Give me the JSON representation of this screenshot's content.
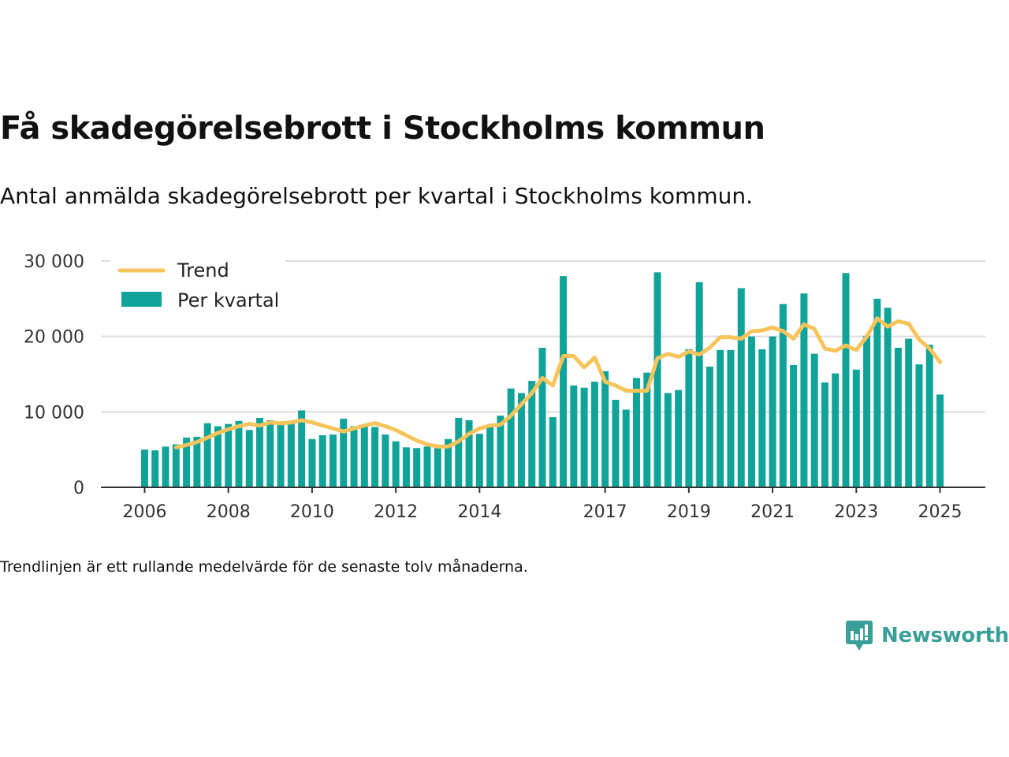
{
  "title": "Få skadegörelsebrott i Stockholms kommun",
  "subtitle": "Antal anmälda skadegörelsebrott per kvartal i Stockholms kommun.",
  "footnote": "Trendlinjen är ett rullande medelvärde för de senaste tolv månaderna.",
  "brand": {
    "name": "Newsworthy",
    "icon": "newsworthy-logo-icon"
  },
  "colors": {
    "bar": "#0fa399",
    "trend": "#f7c35b",
    "grid": "#dddddd",
    "axis": "#333333",
    "brand": "#3a9f98"
  },
  "chart_data": {
    "type": "bar",
    "title": "",
    "xlabel": "",
    "ylabel": "",
    "ylim": [
      0,
      30000
    ],
    "yticks": [
      0,
      10000,
      20000,
      30000
    ],
    "ytick_labels": [
      "0",
      "10 000",
      "20 000",
      "30 000"
    ],
    "xticks": [
      2006,
      2008,
      2010,
      2012,
      2014,
      2017,
      2019,
      2021,
      2023,
      2025
    ],
    "grid": true,
    "legend_position": "top-left",
    "x": [
      2006.0,
      2006.25,
      2006.5,
      2006.75,
      2007.0,
      2007.25,
      2007.5,
      2007.75,
      2008.0,
      2008.25,
      2008.5,
      2008.75,
      2009.0,
      2009.25,
      2009.5,
      2009.75,
      2010.0,
      2010.25,
      2010.5,
      2010.75,
      2011.0,
      2011.25,
      2011.5,
      2011.75,
      2012.0,
      2012.25,
      2012.5,
      2012.75,
      2013.0,
      2013.25,
      2013.5,
      2013.75,
      2014.0,
      2014.25,
      2014.5,
      2014.75,
      2015.0,
      2015.25,
      2015.5,
      2015.75,
      2016.0,
      2016.25,
      2016.5,
      2016.75,
      2017.0,
      2017.25,
      2017.5,
      2017.75,
      2018.0,
      2018.25,
      2018.5,
      2018.75,
      2019.0,
      2019.25,
      2019.5,
      2019.75,
      2020.0,
      2020.25,
      2020.5,
      2020.75,
      2021.0,
      2021.25,
      2021.5,
      2021.75,
      2022.0,
      2022.25,
      2022.5,
      2022.75,
      2023.0,
      2023.25,
      2023.5,
      2023.75,
      2024.0,
      2024.25,
      2024.5,
      2024.75,
      2025.0
    ],
    "series": [
      {
        "name": "Per kvartal",
        "kind": "bar",
        "values": [
          5000,
          4900,
          5400,
          5700,
          6600,
          6700,
          8500,
          8100,
          8400,
          8800,
          7600,
          9200,
          8900,
          8400,
          8600,
          10200,
          6400,
          6900,
          7000,
          9100,
          8100,
          8300,
          8000,
          7000,
          6100,
          5300,
          5200,
          5400,
          5200,
          6400,
          9200,
          8900,
          7100,
          8100,
          9500,
          13100,
          12500,
          14100,
          18500,
          9300,
          28000,
          13500,
          13200,
          14000,
          15400,
          11600,
          10300,
          14500,
          15200,
          28500,
          12500,
          12900,
          18300,
          27200,
          16000,
          18200,
          18200,
          26400,
          20000,
          18300,
          20000,
          24300,
          16200,
          25700,
          17700,
          13900,
          15100,
          28400,
          15600,
          20100,
          25000,
          23800,
          18500,
          19700,
          16300,
          18900,
          12300
        ]
      },
      {
        "name": "Trend",
        "kind": "line",
        "x": [
          2006.75,
          2007.0,
          2007.25,
          2007.5,
          2007.75,
          2008.0,
          2008.25,
          2008.5,
          2008.75,
          2009.0,
          2009.25,
          2009.5,
          2009.75,
          2010.0,
          2010.25,
          2010.5,
          2010.75,
          2011.0,
          2011.25,
          2011.5,
          2011.75,
          2012.0,
          2012.25,
          2012.5,
          2012.75,
          2013.0,
          2013.25,
          2013.5,
          2013.75,
          2014.0,
          2014.25,
          2014.5,
          2014.75,
          2015.0,
          2015.25,
          2015.5,
          2015.75,
          2016.0,
          2016.25,
          2016.5,
          2016.75,
          2017.0,
          2017.25,
          2017.5,
          2017.75,
          2018.0,
          2018.25,
          2018.5,
          2018.75,
          2019.0,
          2019.25,
          2019.5,
          2019.75,
          2020.0,
          2020.25,
          2020.5,
          2020.75,
          2021.0,
          2021.25,
          2021.5,
          2021.75,
          2022.0,
          2022.25,
          2022.5,
          2022.75,
          2023.0,
          2023.25,
          2023.5,
          2023.75,
          2024.0,
          2024.25,
          2024.5,
          2024.75,
          2025.0
        ],
        "values": [
          5300,
          5600,
          6000,
          6600,
          7200,
          7700,
          8100,
          8400,
          8200,
          8600,
          8500,
          8600,
          8900,
          8600,
          8200,
          7800,
          7400,
          7800,
          8200,
          8500,
          8100,
          7600,
          6900,
          6200,
          5700,
          5400,
          5400,
          6100,
          7100,
          7800,
          8200,
          8300,
          9500,
          11000,
          12500,
          14500,
          13500,
          17400,
          17400,
          15900,
          17200,
          14000,
          13500,
          12800,
          12800,
          12800,
          17100,
          17700,
          17300,
          18000,
          17600,
          18500,
          19900,
          19900,
          19700,
          20700,
          20800,
          21200,
          20700,
          19700,
          21600,
          21000,
          18400,
          18100,
          18800,
          18200,
          20000,
          22400,
          21300,
          22000,
          21700,
          19600,
          18400,
          16600
        ]
      }
    ]
  }
}
